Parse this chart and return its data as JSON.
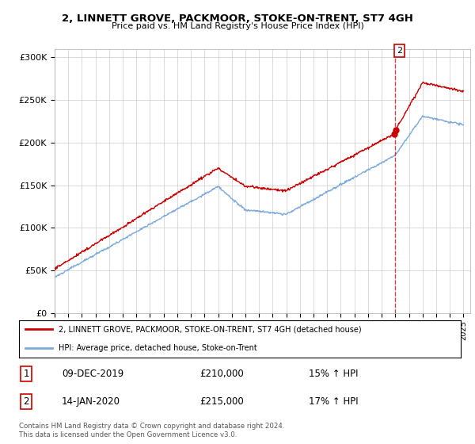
{
  "title": "2, LINNETT GROVE, PACKMOOR, STOKE-ON-TRENT, ST7 4GH",
  "subtitle": "Price paid vs. HM Land Registry's House Price Index (HPI)",
  "ylabel_ticks": [
    "£0",
    "£50K",
    "£100K",
    "£150K",
    "£200K",
    "£250K",
    "£300K"
  ],
  "ylabel_values": [
    0,
    50000,
    100000,
    150000,
    200000,
    250000,
    300000
  ],
  "ylim": [
    0,
    310000
  ],
  "xlim_start": 1995.0,
  "xlim_end": 2025.5,
  "legend_entry1": "2, LINNETT GROVE, PACKMOOR, STOKE-ON-TRENT, ST7 4GH (detached house)",
  "legend_entry2": "HPI: Average price, detached house, Stoke-on-Trent",
  "color_red": "#cc0000",
  "color_blue": "#7aaadd",
  "table_row1_num": "1",
  "table_row1_date": "09-DEC-2019",
  "table_row1_price": "£210,000",
  "table_row1_hpi": "15% ↑ HPI",
  "table_row2_num": "2",
  "table_row2_date": "14-JAN-2020",
  "table_row2_price": "£215,000",
  "table_row2_hpi": "17% ↑ HPI",
  "footer": "Contains HM Land Registry data © Crown copyright and database right 2024.\nThis data is licensed under the Open Government Licence v3.0.",
  "marker_x": 2020.0,
  "sale1_y": 210000,
  "sale2_y": 215000,
  "background_color": "#ffffff",
  "grid_color": "#cccccc"
}
